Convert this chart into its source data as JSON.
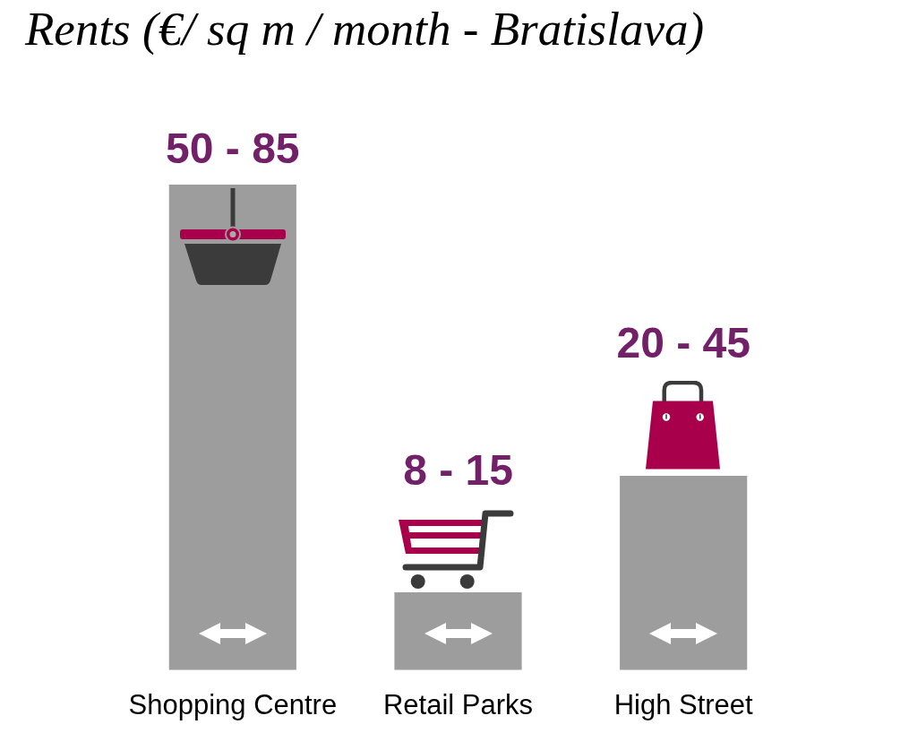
{
  "chart_data": {
    "type": "bar",
    "title": "Rents (€/ sq m / month - Bratislava)",
    "categories": [
      "Shopping Centre",
      "Retail Parks",
      "High Street"
    ],
    "values": [
      50,
      8,
      20
    ],
    "value_labels": [
      "50 - 85",
      "8 - 15",
      "20 - 45"
    ],
    "color": "#9d9d9d",
    "tick_labels": "x"
  }
}
